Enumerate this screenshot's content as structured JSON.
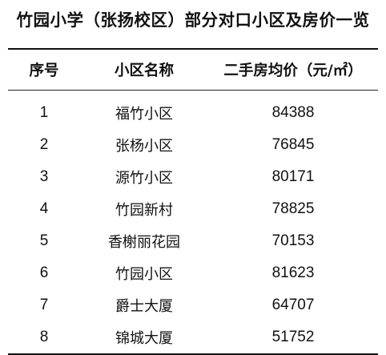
{
  "title": "竹园小学（张扬校区）部分对口小区及房价一览",
  "headers": [
    "序号",
    "小区名称",
    "二手房均价（元/㎡）"
  ],
  "rows": [
    {
      "index": "1",
      "name": "福竹小区",
      "price": "84388"
    },
    {
      "index": "2",
      "name": "张杨小区",
      "price": "76845"
    },
    {
      "index": "3",
      "name": "源竹小区",
      "price": "80171"
    },
    {
      "index": "4",
      "name": "竹园新村",
      "price": "78825"
    },
    {
      "index": "5",
      "name": "香榭丽花园",
      "price": "70153"
    },
    {
      "index": "6",
      "name": "竹园小区",
      "price": "81623"
    },
    {
      "index": "7",
      "name": "爵士大厦",
      "price": "64707"
    },
    {
      "index": "8",
      "name": "锦城大厦",
      "price": "51752"
    }
  ]
}
